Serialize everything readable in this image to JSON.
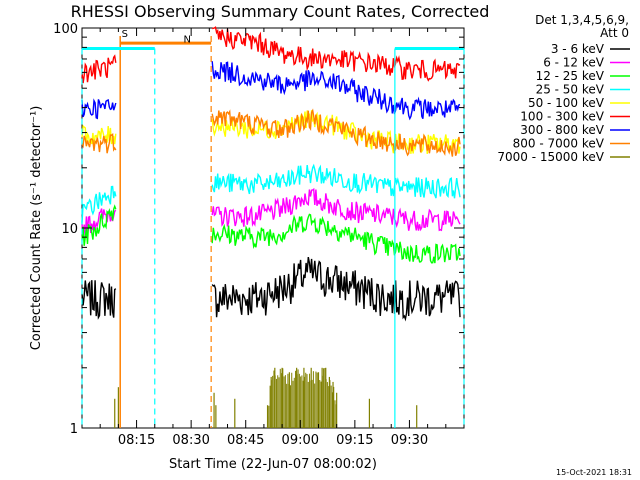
{
  "chart_data": {
    "type": "line",
    "title": "RHESSI Observing Summary Count Rates, Corrected",
    "xlabel": "Start Time (22-Jun-07 08:00:02)",
    "ylabel": "Corrected Count Rate (s⁻¹ detector⁻¹)",
    "ylog": true,
    "ylim": [
      1,
      100
    ],
    "xlim_minutes": [
      0,
      105
    ],
    "x_ticks": [
      {
        "m": 15,
        "label": "08:15"
      },
      {
        "m": 30,
        "label": "08:30"
      },
      {
        "m": 45,
        "label": "08:45"
      },
      {
        "m": 60,
        "label": "09:00"
      },
      {
        "m": 75,
        "label": "09:15"
      },
      {
        "m": 90,
        "label": "09:30"
      }
    ],
    "y_ticks": [
      {
        "v": 1,
        "label": "1"
      },
      {
        "v": 10,
        "label": "10"
      },
      {
        "v": 100,
        "label": "100"
      }
    ],
    "legend_header": [
      "Det 1,3,4,5,6,9,",
      "Att 0"
    ],
    "legend_placement": "right",
    "timestamp": "15-Oct-2021 18:31",
    "series": [
      {
        "name": "3 - 6 keV",
        "color": "#000000",
        "x": [
          0,
          9.5,
          36,
          48,
          55,
          62,
          69,
          76,
          84,
          90,
          104
        ],
        "y": [
          4.5,
          4.5,
          4.5,
          4.5,
          5.0,
          6.0,
          5.5,
          5.0,
          4.5,
          4.5,
          4.5
        ]
      },
      {
        "name": "6 - 12 keV",
        "color": "#ff00ff",
        "x": [
          0,
          4,
          8,
          9.5,
          36,
          48,
          55,
          62,
          69,
          76,
          84,
          90,
          104
        ],
        "y": [
          10.0,
          11.0,
          12.0,
          13.0,
          11.5,
          11.5,
          12.5,
          14.5,
          13.0,
          12.0,
          11.5,
          11.0,
          11.0
        ]
      },
      {
        "name": "12 - 25 keV",
        "color": "#00ff00",
        "x": [
          0,
          4,
          8,
          9.5,
          36,
          48,
          55,
          62,
          69,
          76,
          84,
          90,
          104
        ],
        "y": [
          9.0,
          10.0,
          12.0,
          13.0,
          9.5,
          9.0,
          9.5,
          11.0,
          10.0,
          9.0,
          8.0,
          7.5,
          7.5
        ]
      },
      {
        "name": "25 - 50 keV",
        "color": "#00ffff",
        "x": [
          0,
          4,
          8,
          9.5,
          36,
          48,
          55,
          62,
          69,
          76,
          84,
          90,
          104
        ],
        "y": [
          12.0,
          13.5,
          15.0,
          16.5,
          17.0,
          16.5,
          17.0,
          19.0,
          18.0,
          17.0,
          16.0,
          16.0,
          16.0
        ]
      },
      {
        "name": "50 - 100 keV",
        "color": "#ffff00",
        "x": [
          0,
          4,
          8,
          9.5,
          36,
          48,
          55,
          62,
          69,
          76,
          84,
          90,
          104
        ],
        "y": [
          29.0,
          28.5,
          29.0,
          29.5,
          33.0,
          31.0,
          32.0,
          35.0,
          33.0,
          29.0,
          27.0,
          26.5,
          26.5
        ]
      },
      {
        "name": "100 - 300 keV",
        "color": "#ff0000",
        "x": [
          0,
          4,
          8,
          9.5,
          36,
          48,
          55,
          62,
          69,
          76,
          84,
          90,
          104
        ],
        "y": [
          60.0,
          62.0,
          64.0,
          66.0,
          92.0,
          85.0,
          75.0,
          71.0,
          70.0,
          68.0,
          65.0,
          62.0,
          61.0
        ]
      },
      {
        "name": "300 - 800 keV",
        "color": "#0000ff",
        "x": [
          0,
          4,
          8,
          9.5,
          36,
          48,
          55,
          62,
          69,
          76,
          84,
          90,
          104
        ],
        "y": [
          40.0,
          40.0,
          40.0,
          41.0,
          63.0,
          56.0,
          52.0,
          55.0,
          54.0,
          48.0,
          43.0,
          40.0,
          39.0
        ]
      },
      {
        "name": "800 - 7000 keV",
        "color": "#ff8000",
        "x": [
          0,
          4,
          8,
          9.5,
          36,
          48,
          55,
          62,
          69,
          76,
          84,
          90,
          104
        ],
        "y": [
          26.0,
          26.5,
          27.0,
          27.5,
          37.0,
          33.0,
          31.0,
          35.0,
          33.0,
          29.0,
          27.0,
          26.0,
          25.5
        ]
      },
      {
        "name": "7000 - 15000 keV",
        "color": "#808000",
        "x": [
          9,
          10,
          36.3,
          36.8,
          42,
          51,
          52,
          53,
          55,
          57,
          59,
          61,
          63,
          65,
          66,
          67,
          68,
          69,
          70,
          79,
          92
        ],
        "y": [
          1.4,
          1.6,
          1.5,
          1.3,
          1.4,
          1.3,
          1.8,
          2.0,
          2.0,
          1.9,
          2.0,
          2.0,
          2.0,
          1.9,
          2.0,
          2.0,
          1.8,
          1.7,
          1.5,
          1.4,
          1.3
        ]
      }
    ],
    "annotations": [
      {
        "label": "S",
        "color": "#ff8000",
        "x": 12,
        "y_top": 84
      },
      {
        "label": "N",
        "color": "#00ffff",
        "x": 29,
        "y_top": 79
      }
    ],
    "shaded_markers": {
      "saa_interval": {
        "start": 10.5,
        "end": 35.5,
        "color": "#ff8000"
      },
      "night_interval": {
        "start": 20,
        "end": 86,
        "color": "#00ffff"
      }
    }
  }
}
